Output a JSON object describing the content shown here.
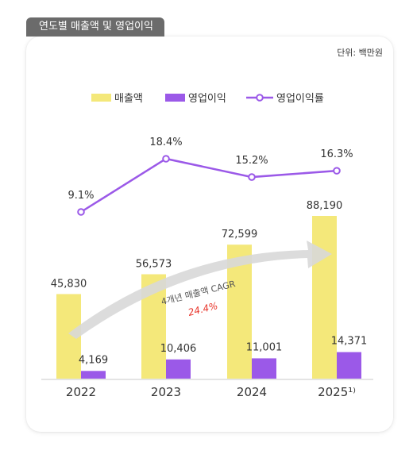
{
  "title": "연도별 매출액 및 영업이익",
  "unit": "단위: 백만원",
  "colors": {
    "revenue": "#f4e87a",
    "profit": "#9b59e8",
    "margin": "#9b59e8",
    "arrow": "#d8d8d8",
    "cagr_value": "#e8362c"
  },
  "chart_data": {
    "type": "bar",
    "categories": [
      "2022",
      "2023",
      "2024",
      "2025"
    ],
    "category_labels": [
      "2022",
      "2023",
      "2024",
      "2025¹⁾"
    ],
    "series": [
      {
        "name": "매출액",
        "type": "bar",
        "values": [
          45830,
          56573,
          72599,
          88190
        ],
        "labels": [
          "45,830",
          "56,573",
          "72,599",
          "88,190"
        ]
      },
      {
        "name": "영업이익",
        "type": "bar",
        "values": [
          4169,
          10406,
          11001,
          14371
        ],
        "labels": [
          "4,169",
          "10,406",
          "11,001",
          "14,371"
        ]
      },
      {
        "name": "영업이익률",
        "type": "line",
        "values": [
          9.1,
          18.4,
          15.2,
          16.3
        ],
        "labels": [
          "9.1%",
          "18.4%",
          "15.2%",
          "16.3%"
        ]
      }
    ],
    "annotation": {
      "label": "4개년 매출액 CAGR",
      "value": "24.4%"
    },
    "ylim": [
      0,
      88190
    ],
    "line_ylim": [
      9.1,
      18.4
    ],
    "grid": false,
    "legend_position": "top-center"
  }
}
